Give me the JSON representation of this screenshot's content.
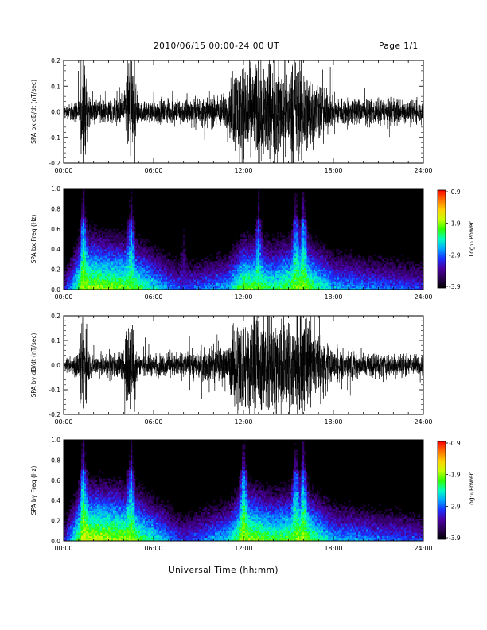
{
  "header": {
    "title": "2010/06/15  00:00-24:00 UT",
    "page": "Page 1/1",
    "xlabel": "Universal Time (hh:mm)"
  },
  "colors": {
    "trace": "#000000",
    "spectrogram_background": "#000000",
    "colormap": [
      "#000000",
      "#2a0050",
      "#4a00a0",
      "#1a2fff",
      "#00a8ff",
      "#00ffc0",
      "#30ff00",
      "#c8ff00",
      "#ffd000",
      "#ff7000",
      "#ff0000"
    ]
  },
  "chart_data": [
    {
      "type": "line",
      "panel": "bx-waveform",
      "ylabel": "SPA bx dB/dt (nT/sec)",
      "ylim": [
        -0.2,
        0.2
      ],
      "yticks": [
        "-0.2",
        "-0.1",
        "0.0",
        "0.1",
        "0.2"
      ],
      "xlim": [
        0,
        24
      ],
      "xticks": [
        "00:00",
        "06:00",
        "12:00",
        "18:00",
        "24:00"
      ],
      "x_hours": [
        0,
        1.0,
        1.3,
        1.8,
        4.0,
        4.3,
        4.6,
        5.0,
        8.0,
        11.0,
        11.5,
        12.0,
        14.0,
        15.5,
        16.0,
        16.5,
        18.0,
        20.0,
        22.0,
        24.0
      ],
      "amplitude": [
        0.02,
        0.05,
        0.2,
        0.04,
        0.05,
        0.2,
        0.2,
        0.04,
        0.05,
        0.07,
        0.2,
        0.2,
        0.2,
        0.2,
        0.2,
        0.15,
        0.06,
        0.05,
        0.05,
        0.04
      ],
      "grid": false
    },
    {
      "type": "heatmap",
      "panel": "bx-spectrogram",
      "ylabel": "SPA bx Freq (Hz)",
      "ylim": [
        0.0,
        1.0
      ],
      "yticks": [
        "0.0",
        "0.2",
        "0.4",
        "0.6",
        "0.8",
        "1.0"
      ],
      "xlim": [
        0,
        24
      ],
      "xticks": [
        "00:00",
        "06:00",
        "12:00",
        "18:00",
        "24:00"
      ],
      "colorbar": {
        "label": "Log₁₀ Power",
        "range": [
          -3.9,
          -0.9
        ],
        "ticks": [
          "-0.9",
          "-1.9",
          "-2.9",
          "-3.9"
        ]
      },
      "x_hours": [
        0,
        1.3,
        4.5,
        8.0,
        11.0,
        12.0,
        14.0,
        16.0,
        18.0,
        21.0,
        24.0
      ],
      "power_low_freq": [
        -3.2,
        -1.8,
        -2.0,
        -3.0,
        -2.6,
        -2.0,
        -2.2,
        -1.9,
        -2.6,
        -2.8,
        -3.0
      ],
      "bursts_hours": [
        1.3,
        4.5,
        8.0,
        13.0,
        15.5,
        16.0
      ]
    },
    {
      "type": "line",
      "panel": "by-waveform",
      "ylabel": "SPA by dB/dt (nT/sec)",
      "ylim": [
        -0.2,
        0.2
      ],
      "yticks": [
        "-0.2",
        "-0.1",
        "0.0",
        "0.1",
        "0.2"
      ],
      "xlim": [
        0,
        24
      ],
      "xticks": [
        "00:00",
        "06:00",
        "12:00",
        "18:00",
        "24:00"
      ],
      "x_hours": [
        0,
        1.0,
        1.3,
        1.8,
        4.0,
        4.3,
        4.6,
        5.0,
        8.0,
        11.0,
        11.5,
        12.0,
        14.0,
        15.5,
        16.0,
        16.5,
        18.0,
        20.0,
        22.0,
        24.0
      ],
      "amplitude": [
        0.02,
        0.06,
        0.2,
        0.04,
        0.06,
        0.2,
        0.2,
        0.04,
        0.05,
        0.08,
        0.2,
        0.2,
        0.2,
        0.2,
        0.2,
        0.16,
        0.06,
        0.05,
        0.05,
        0.04
      ],
      "grid": false
    },
    {
      "type": "heatmap",
      "panel": "by-spectrogram",
      "ylabel": "SPA by Freq (Hz)",
      "ylim": [
        0.0,
        1.0
      ],
      "yticks": [
        "0.0",
        "0.2",
        "0.4",
        "0.6",
        "0.8",
        "1.0"
      ],
      "xlim": [
        0,
        24
      ],
      "xticks": [
        "00:00",
        "06:00",
        "12:00",
        "18:00",
        "24:00"
      ],
      "colorbar": {
        "label": "Log₁₀ Power",
        "range": [
          -3.9,
          -0.9
        ],
        "ticks": [
          "-0.9",
          "-1.9",
          "-2.9",
          "-3.9"
        ]
      },
      "x_hours": [
        0,
        1.3,
        4.5,
        8.0,
        11.0,
        12.0,
        14.0,
        16.0,
        18.0,
        21.0,
        24.0
      ],
      "power_low_freq": [
        -3.2,
        -1.7,
        -1.9,
        -3.0,
        -2.5,
        -1.8,
        -2.1,
        -1.9,
        -2.6,
        -2.8,
        -3.0
      ],
      "bursts_hours": [
        1.3,
        4.5,
        12.0,
        15.5,
        16.0
      ]
    }
  ]
}
